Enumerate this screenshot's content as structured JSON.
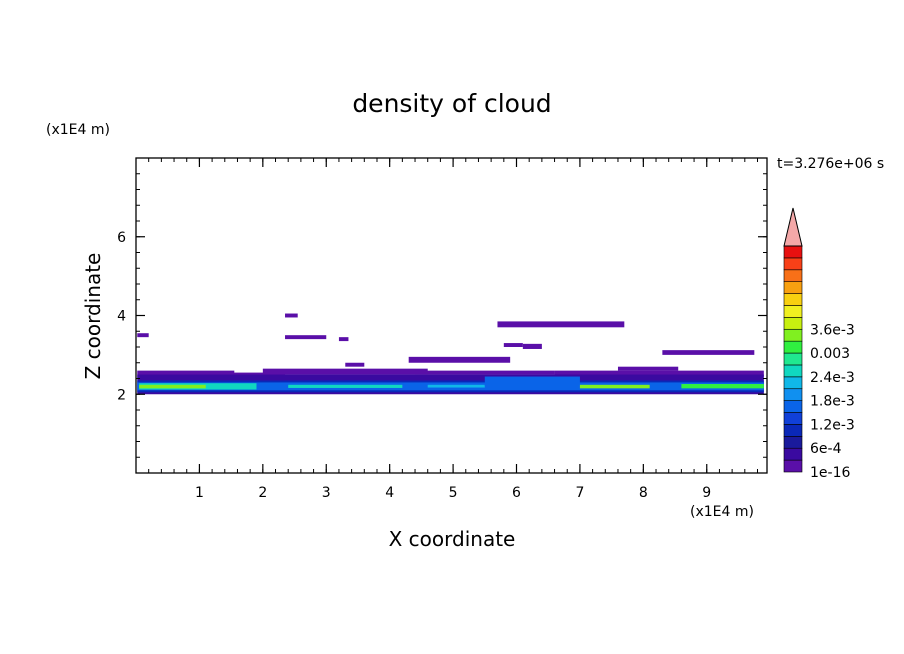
{
  "chart_data": {
    "type": "heatmap",
    "title": "density of cloud",
    "xlabel": "X coordinate",
    "ylabel": "Z coordinate",
    "x_unit": "(x1E4 m)",
    "y_unit": "(x1E4 m)",
    "time_label": "t=3.276e+06 s",
    "xlim": [
      0,
      9.95
    ],
    "ylim": [
      0,
      8
    ],
    "x_ticks": [
      {
        "value": 1,
        "label": "1"
      },
      {
        "value": 2,
        "label": "2"
      },
      {
        "value": 3,
        "label": "3"
      },
      {
        "value": 4,
        "label": "4"
      },
      {
        "value": 5,
        "label": "5"
      },
      {
        "value": 6,
        "label": "6"
      },
      {
        "value": 7,
        "label": "7"
      },
      {
        "value": 8,
        "label": "8"
      },
      {
        "value": 9,
        "label": "9"
      }
    ],
    "y_ticks": [
      {
        "value": 2,
        "label": "2"
      },
      {
        "value": 4,
        "label": "4"
      },
      {
        "value": 6,
        "label": "6"
      }
    ],
    "colorbar": {
      "levels": [
        "#5a0fa8",
        "#3a0aa0",
        "#1a1a9c",
        "#0a28b8",
        "#1040d8",
        "#0a64e8",
        "#1090f0",
        "#10b8e8",
        "#10d8c0",
        "#20e890",
        "#30f040",
        "#80f020",
        "#c8f010",
        "#f0f020",
        "#f8d010",
        "#f8a010",
        "#f87018",
        "#f84018",
        "#e81010"
      ],
      "over_color": "#f4a8a8",
      "tick_labels": [
        {
          "level": 0,
          "label": "1e-16"
        },
        {
          "level": 2,
          "label": "6e-4"
        },
        {
          "level": 4,
          "label": "1.2e-3"
        },
        {
          "level": 6,
          "label": "1.8e-3"
        },
        {
          "level": 8,
          "label": "2.4e-3"
        },
        {
          "level": 10,
          "label": "0.003"
        },
        {
          "level": 12,
          "label": "3.6e-3"
        }
      ]
    },
    "field_patches": [
      {
        "x0": 0.02,
        "x1": 1.55,
        "z0": 2.4,
        "z1": 2.6,
        "level": 0
      },
      {
        "x0": 1.5,
        "x1": 2.35,
        "z0": 2.35,
        "z1": 2.55,
        "level": 0
      },
      {
        "x0": 2.0,
        "x1": 4.6,
        "z0": 2.5,
        "z1": 2.65,
        "level": 0
      },
      {
        "x0": 4.4,
        "x1": 6.6,
        "z0": 2.5,
        "z1": 2.6,
        "level": 0
      },
      {
        "x0": 6.6,
        "x1": 9.9,
        "z0": 2.45,
        "z1": 2.6,
        "level": 0
      },
      {
        "x0": 2.35,
        "x1": 2.55,
        "z0": 3.95,
        "z1": 4.05,
        "level": 0
      },
      {
        "x0": 2.35,
        "x1": 3.0,
        "z0": 3.4,
        "z1": 3.5,
        "level": 0
      },
      {
        "x0": 3.2,
        "x1": 3.35,
        "z0": 3.35,
        "z1": 3.45,
        "level": 0
      },
      {
        "x0": 0.02,
        "x1": 0.2,
        "z0": 3.45,
        "z1": 3.55,
        "level": 0
      },
      {
        "x0": 3.3,
        "x1": 3.6,
        "z0": 2.7,
        "z1": 2.8,
        "level": 0
      },
      {
        "x0": 4.3,
        "x1": 5.9,
        "z0": 2.8,
        "z1": 2.95,
        "level": 0
      },
      {
        "x0": 5.8,
        "x1": 6.1,
        "z0": 3.2,
        "z1": 3.3,
        "level": 0
      },
      {
        "x0": 6.1,
        "x1": 6.4,
        "z0": 3.15,
        "z1": 3.28,
        "level": 0
      },
      {
        "x0": 5.7,
        "x1": 7.7,
        "z0": 3.7,
        "z1": 3.85,
        "level": 0
      },
      {
        "x0": 7.6,
        "x1": 8.55,
        "z0": 2.6,
        "z1": 2.7,
        "level": 0
      },
      {
        "x0": 8.3,
        "x1": 9.75,
        "z0": 3.0,
        "z1": 3.12,
        "level": 0
      },
      {
        "x0": 0.02,
        "x1": 9.9,
        "z0": 2.0,
        "z1": 2.5,
        "level": 1
      },
      {
        "x0": 0.02,
        "x1": 9.9,
        "z0": 2.05,
        "z1": 2.35,
        "level": 3
      },
      {
        "x0": 0.02,
        "x1": 9.9,
        "z0": 2.1,
        "z1": 2.3,
        "level": 5
      },
      {
        "x0": 0.05,
        "x1": 1.9,
        "z0": 2.12,
        "z1": 2.28,
        "level": 8
      },
      {
        "x0": 0.05,
        "x1": 1.1,
        "z0": 2.15,
        "z1": 2.24,
        "level": 11
      },
      {
        "x0": 2.4,
        "x1": 4.2,
        "z0": 2.16,
        "z1": 2.24,
        "level": 8
      },
      {
        "x0": 4.6,
        "x1": 5.5,
        "z0": 2.17,
        "z1": 2.24,
        "level": 7
      },
      {
        "x0": 5.5,
        "x1": 7.0,
        "z0": 2.2,
        "z1": 2.45,
        "level": 5
      },
      {
        "x0": 7.0,
        "x1": 8.1,
        "z0": 2.15,
        "z1": 2.24,
        "level": 11
      },
      {
        "x0": 8.6,
        "x1": 9.9,
        "z0": 2.15,
        "z1": 2.26,
        "level": 10
      }
    ]
  }
}
